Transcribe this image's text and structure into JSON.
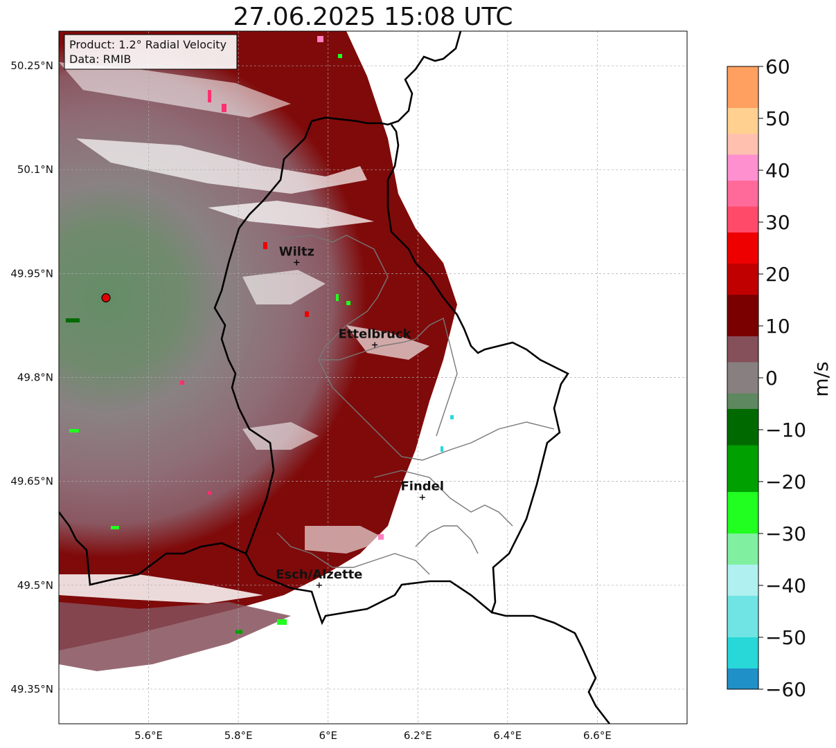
{
  "title": "27.06.2025 15:08 UTC",
  "info_box": {
    "product": "Product: 1.2° Radial Velocity",
    "data": "Data: RMIB"
  },
  "map": {
    "lon_range": [
      5.4,
      6.8
    ],
    "lat_range": [
      49.3,
      50.3
    ],
    "lon_ticks": [
      {
        "value": 5.6,
        "label": "5.6°E"
      },
      {
        "value": 5.8,
        "label": "5.8°E"
      },
      {
        "value": 6.0,
        "label": "6°E"
      },
      {
        "value": 6.2,
        "label": "6.2°E"
      },
      {
        "value": 6.4,
        "label": "6.4°E"
      },
      {
        "value": 6.6,
        "label": "6.6°E"
      }
    ],
    "lat_ticks": [
      {
        "value": 50.25,
        "label": "50.25°N"
      },
      {
        "value": 50.1,
        "label": "50.1°N"
      },
      {
        "value": 49.95,
        "label": "49.95°N"
      },
      {
        "value": 49.8,
        "label": "49.8°N"
      },
      {
        "value": 49.65,
        "label": "49.65°N"
      },
      {
        "value": 49.5,
        "label": "49.5°N"
      },
      {
        "value": 49.35,
        "label": "49.35°N"
      }
    ],
    "radar_site": {
      "lon": 5.505,
      "lat": 49.915,
      "color": "#e00000"
    },
    "cities": [
      {
        "name": "Wiltz",
        "lon": 5.93,
        "lat": 49.966
      },
      {
        "name": "Ettelbruck",
        "lon": 6.104,
        "lat": 49.847
      },
      {
        "name": "Findel",
        "lon": 6.21,
        "lat": 49.627
      },
      {
        "name": "Esch/Alzette",
        "lon": 5.98,
        "lat": 49.5
      }
    ]
  },
  "colorbar": {
    "label": "m/s",
    "min": -60,
    "max": 60,
    "ticks": [
      {
        "value": 60,
        "label": "60"
      },
      {
        "value": 50,
        "label": "50"
      },
      {
        "value": 40,
        "label": "40"
      },
      {
        "value": 30,
        "label": "30"
      },
      {
        "value": 20,
        "label": "20"
      },
      {
        "value": 10,
        "label": "10"
      },
      {
        "value": 0,
        "label": "0"
      },
      {
        "value": -10,
        "label": "−10"
      },
      {
        "value": -20,
        "label": "−20"
      },
      {
        "value": -30,
        "label": "−30"
      },
      {
        "value": -40,
        "label": "−40"
      },
      {
        "value": -50,
        "label": "−50"
      },
      {
        "value": -60,
        "label": "−60"
      }
    ],
    "stops": [
      {
        "from": 52,
        "to": 60,
        "color": "#ffa060"
      },
      {
        "from": 47,
        "to": 52,
        "color": "#ffd090"
      },
      {
        "from": 43,
        "to": 47,
        "color": "#ffc0b0"
      },
      {
        "from": 38,
        "to": 43,
        "color": "#ff90d0"
      },
      {
        "from": 33,
        "to": 38,
        "color": "#ff6a9a"
      },
      {
        "from": 28,
        "to": 33,
        "color": "#ff4a6a"
      },
      {
        "from": 22,
        "to": 28,
        "color": "#ee0000"
      },
      {
        "from": 16,
        "to": 22,
        "color": "#c00000"
      },
      {
        "from": 8,
        "to": 16,
        "color": "#7a0000"
      },
      {
        "from": 3,
        "to": 8,
        "color": "#85505a"
      },
      {
        "from": -3,
        "to": 3,
        "color": "#888080"
      },
      {
        "from": -6,
        "to": -3,
        "color": "#5e8860"
      },
      {
        "from": -13,
        "to": -6,
        "color": "#006a00"
      },
      {
        "from": -22,
        "to": -13,
        "color": "#00a000"
      },
      {
        "from": -30,
        "to": -22,
        "color": "#20ff20"
      },
      {
        "from": -36,
        "to": -30,
        "color": "#80f0a0"
      },
      {
        "from": -42,
        "to": -36,
        "color": "#b0f0f0"
      },
      {
        "from": -50,
        "to": -42,
        "color": "#70e4e4"
      },
      {
        "from": -56,
        "to": -50,
        "color": "#28d8d8"
      },
      {
        "from": -60,
        "to": -56,
        "color": "#2090c8"
      }
    ]
  },
  "colors": {
    "near_zero_green": "#5e8860",
    "near_zero_grey": "#8a7a7e",
    "receding_mauve": "#85505a",
    "receding_darkred": "#7a0000",
    "border": "#000000",
    "admin_border": "#777777"
  }
}
